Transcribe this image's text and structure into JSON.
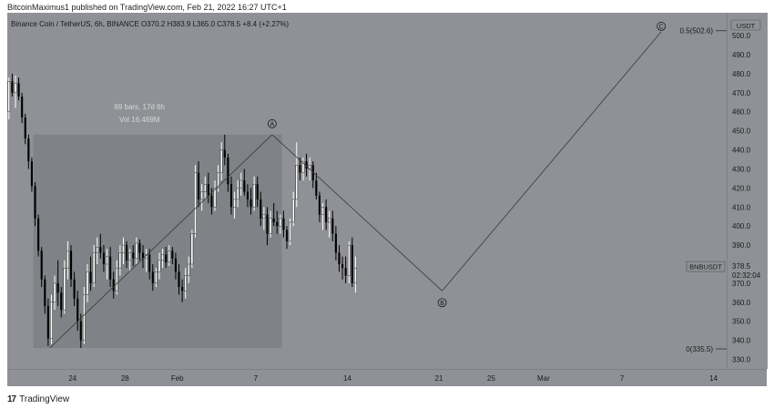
{
  "header": {
    "publisher": "BitcoinMaximus1 published on TradingView.com, Feb 21, 2022 16:27 UTC+1"
  },
  "footer": {
    "logo": "17",
    "brand": "TradingView"
  },
  "symbol_info": {
    "name": "Binance Coin / TetherUS, 6h, BINANCE",
    "open": "O370.2",
    "high": "H383.9",
    "low": "L365.0",
    "close": "C378.5",
    "change": "+8.4 (+2.27%)"
  },
  "price_axis": {
    "currency": "USDT",
    "ticker_label": "BNBUSDT",
    "last_price": "378.5",
    "countdown": "02:32:04"
  },
  "measure": {
    "bars": "69 bars, 17d 6h",
    "volume": "Vol 16.469M"
  },
  "wave_labels": [
    "A",
    "B",
    "C"
  ],
  "fib_levels": [
    {
      "label": "0.5(502.6)",
      "price": 502.6
    },
    {
      "label": "0(335.5)",
      "price": 335.5
    }
  ],
  "colors": {
    "background": "#8f9196",
    "candle_up": "#ffffff",
    "candle_down": "#000000",
    "line": "#3a3a3a",
    "measure_box": "#7d7f84"
  },
  "chart_data": {
    "type": "candlestick",
    "title": "Binance Coin / TetherUS, 6h, BINANCE",
    "xlabel": "",
    "ylabel": "USDT",
    "ylim": [
      325,
      512
    ],
    "y_ticks": [
      330,
      340,
      350,
      360,
      370,
      380,
      390,
      400,
      410,
      420,
      430,
      440,
      450,
      460,
      470,
      480,
      490,
      500,
      510
    ],
    "x_ticks": [
      {
        "label": "24",
        "date": "2022-01-24"
      },
      {
        "label": "28",
        "date": "2022-01-28"
      },
      {
        "label": "Feb",
        "date": "2022-02-01"
      },
      {
        "label": "7",
        "date": "2022-02-07"
      },
      {
        "label": "14",
        "date": "2022-02-14"
      },
      {
        "label": "21",
        "date": "2022-02-21"
      },
      {
        "label": "25",
        "date": "2022-02-25"
      },
      {
        "label": "Mar",
        "date": "2022-03-01"
      },
      {
        "label": "7",
        "date": "2022-03-07"
      },
      {
        "label": "14",
        "date": "2022-03-14"
      }
    ],
    "x_range": [
      "2022-01-19",
      "2022-03-15"
    ],
    "candles_start": "2022-01-19",
    "bar_hours": 6,
    "wave_points": [
      {
        "label": "A",
        "date": "2022-01-22T06:00",
        "price": 336
      },
      {
        "label": "A",
        "date": "2022-02-08T06:00",
        "price": 448
      },
      {
        "label": "B",
        "date": "2022-02-21T06:00",
        "price": 366
      },
      {
        "label": "C",
        "date": "2022-03-10T00:00",
        "price": 502
      }
    ],
    "measure_range": {
      "start": "2022-01-21T00:00",
      "end": "2022-02-09T00:00",
      "low": 336,
      "high": 448
    },
    "candles": [
      [
        460,
        478,
        456,
        476
      ],
      [
        476,
        480,
        468,
        470
      ],
      [
        470,
        479,
        462,
        475
      ],
      [
        475,
        478,
        466,
        468
      ],
      [
        468,
        470,
        454,
        457
      ],
      [
        457,
        459,
        443,
        446
      ],
      [
        446,
        448,
        430,
        434
      ],
      [
        434,
        436,
        418,
        421
      ],
      [
        421,
        423,
        400,
        404
      ],
      [
        404,
        406,
        384,
        387
      ],
      [
        387,
        389,
        368,
        372
      ],
      [
        372,
        374,
        354,
        358
      ],
      [
        358,
        362,
        337,
        341
      ],
      [
        341,
        364,
        338,
        360
      ],
      [
        360,
        374,
        356,
        370
      ],
      [
        370,
        382,
        358,
        365
      ],
      [
        365,
        368,
        352,
        356
      ],
      [
        356,
        382,
        354,
        378
      ],
      [
        378,
        392,
        372,
        387
      ],
      [
        387,
        390,
        368,
        372
      ],
      [
        372,
        376,
        358,
        362
      ],
      [
        362,
        366,
        345,
        350
      ],
      [
        350,
        354,
        336,
        340
      ],
      [
        340,
        368,
        338,
        364
      ],
      [
        364,
        380,
        360,
        376
      ],
      [
        376,
        384,
        366,
        370
      ],
      [
        370,
        390,
        368,
        386
      ],
      [
        386,
        394,
        380,
        389
      ],
      [
        389,
        396,
        383,
        386
      ],
      [
        386,
        390,
        376,
        380
      ],
      [
        380,
        388,
        372,
        384
      ],
      [
        384,
        389,
        368,
        372
      ],
      [
        372,
        376,
        362,
        366
      ],
      [
        366,
        382,
        364,
        378
      ],
      [
        378,
        390,
        374,
        386
      ],
      [
        386,
        394,
        380,
        390
      ],
      [
        390,
        392,
        378,
        382
      ],
      [
        382,
        388,
        376,
        386
      ],
      [
        386,
        390,
        379,
        383
      ],
      [
        383,
        394,
        380,
        391
      ],
      [
        391,
        393,
        382,
        386
      ],
      [
        386,
        390,
        378,
        383
      ],
      [
        383,
        388,
        376,
        385
      ],
      [
        385,
        388,
        372,
        376
      ],
      [
        376,
        380,
        366,
        370
      ],
      [
        370,
        378,
        368,
        376
      ],
      [
        376,
        386,
        372,
        382
      ],
      [
        382,
        388,
        378,
        385
      ],
      [
        385,
        389,
        378,
        381
      ],
      [
        381,
        390,
        379,
        387
      ],
      [
        387,
        389,
        380,
        383
      ],
      [
        383,
        386,
        372,
        376
      ],
      [
        376,
        380,
        364,
        368
      ],
      [
        368,
        372,
        360,
        366
      ],
      [
        366,
        378,
        362,
        374
      ],
      [
        374,
        384,
        370,
        380
      ],
      [
        380,
        398,
        378,
        396
      ],
      [
        396,
        432,
        394,
        428
      ],
      [
        428,
        434,
        410,
        414
      ],
      [
        414,
        422,
        408,
        418
      ],
      [
        418,
        426,
        414,
        422
      ],
      [
        422,
        428,
        412,
        416
      ],
      [
        416,
        420,
        406,
        410
      ],
      [
        410,
        424,
        408,
        420
      ],
      [
        420,
        432,
        418,
        428
      ],
      [
        428,
        444,
        424,
        440
      ],
      [
        440,
        448,
        432,
        436
      ],
      [
        436,
        438,
        418,
        422
      ],
      [
        422,
        426,
        406,
        410
      ],
      [
        410,
        418,
        404,
        414
      ],
      [
        414,
        424,
        410,
        420
      ],
      [
        420,
        428,
        416,
        424
      ],
      [
        424,
        430,
        416,
        418
      ],
      [
        418,
        422,
        410,
        414
      ],
      [
        414,
        420,
        406,
        410
      ],
      [
        410,
        426,
        408,
        422
      ],
      [
        422,
        426,
        410,
        414
      ],
      [
        414,
        418,
        400,
        404
      ],
      [
        404,
        410,
        398,
        406
      ],
      [
        406,
        410,
        390,
        396
      ],
      [
        396,
        408,
        394,
        404
      ],
      [
        404,
        412,
        400,
        402
      ],
      [
        402,
        408,
        396,
        400
      ],
      [
        400,
        406,
        396,
        404
      ],
      [
        404,
        408,
        394,
        398
      ],
      [
        398,
        400,
        388,
        392
      ],
      [
        392,
        404,
        390,
        402
      ],
      [
        402,
        418,
        400,
        414
      ],
      [
        414,
        444,
        410,
        432
      ],
      [
        432,
        436,
        424,
        428
      ],
      [
        428,
        436,
        424,
        434
      ],
      [
        434,
        438,
        426,
        430
      ],
      [
        430,
        436,
        424,
        432
      ],
      [
        432,
        434,
        420,
        424
      ],
      [
        424,
        428,
        414,
        416
      ],
      [
        416,
        418,
        402,
        406
      ],
      [
        406,
        412,
        398,
        410
      ],
      [
        410,
        414,
        398,
        402
      ],
      [
        402,
        408,
        394,
        404
      ],
      [
        404,
        408,
        392,
        396
      ],
      [
        396,
        400,
        382,
        386
      ],
      [
        386,
        390,
        376,
        380
      ],
      [
        380,
        384,
        372,
        378
      ],
      [
        378,
        384,
        370,
        374
      ],
      [
        374,
        392,
        370,
        390
      ],
      [
        390,
        394,
        368,
        370
      ],
      [
        370,
        384,
        365,
        378
      ]
    ]
  }
}
